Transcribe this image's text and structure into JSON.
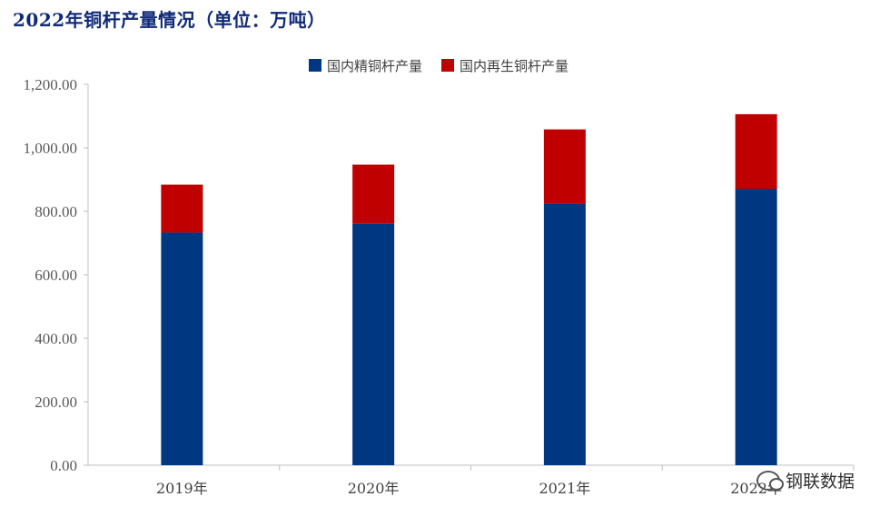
{
  "title": "2022年铜杆产量情况（单位：万吨）",
  "watermark": "钢联数据",
  "colors": {
    "domestic": "#003781",
    "recycled": "#c00000",
    "title": "#0f2a78"
  },
  "chart_data": {
    "type": "bar",
    "stacked": true,
    "categories": [
      "2019年",
      "2020年",
      "2021年",
      "2022年"
    ],
    "series": [
      {
        "name": "国内精铜杆产量",
        "values": [
          733,
          762,
          824,
          870
        ]
      },
      {
        "name": "国内再生铜杆产量",
        "values": [
          151,
          185,
          234,
          236
        ]
      }
    ],
    "ylim": [
      0,
      1200
    ],
    "yticks": [
      "0.00",
      "200.00",
      "400.00",
      "600.00",
      "800.00",
      "1,000.00",
      "1,200.00"
    ],
    "legend_position": "top-right",
    "grid": false
  }
}
